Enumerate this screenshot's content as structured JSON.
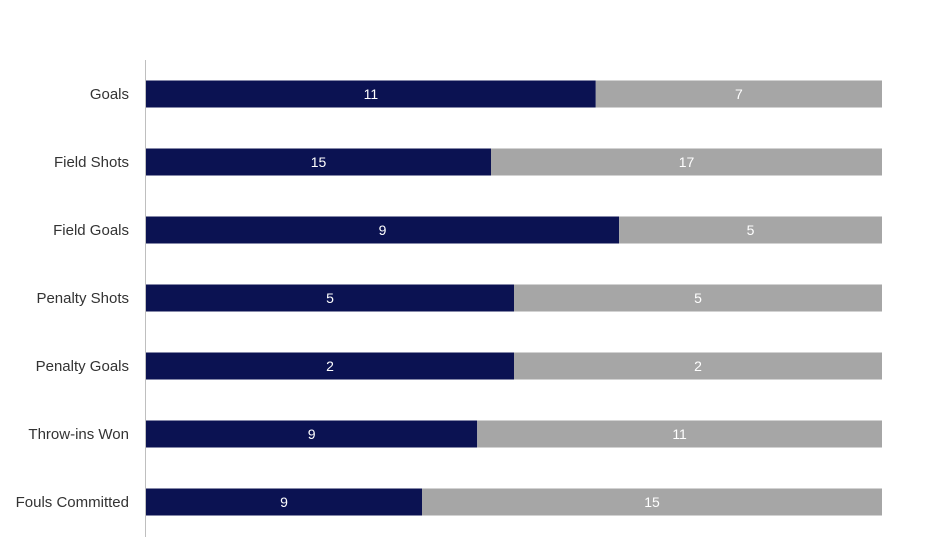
{
  "chart_data": {
    "type": "bar",
    "orientation": "horizontal",
    "stacking": "percent",
    "categories": [
      "Goals",
      "Field Shots",
      "Field Goals",
      "Penalty Shots",
      "Penalty Goals",
      "Throw-ins Won",
      "Fouls Committed"
    ],
    "series": [
      {
        "values": [
          11,
          15,
          9,
          5,
          2,
          9,
          9
        ],
        "color": "#0b1252"
      },
      {
        "values": [
          7,
          17,
          5,
          5,
          2,
          11,
          15
        ],
        "color": "#a6a6a6"
      }
    ],
    "title": "",
    "xlabel": "",
    "ylabel": "",
    "grid": false,
    "legend": "none",
    "axis_color": "#bfbfbf"
  }
}
